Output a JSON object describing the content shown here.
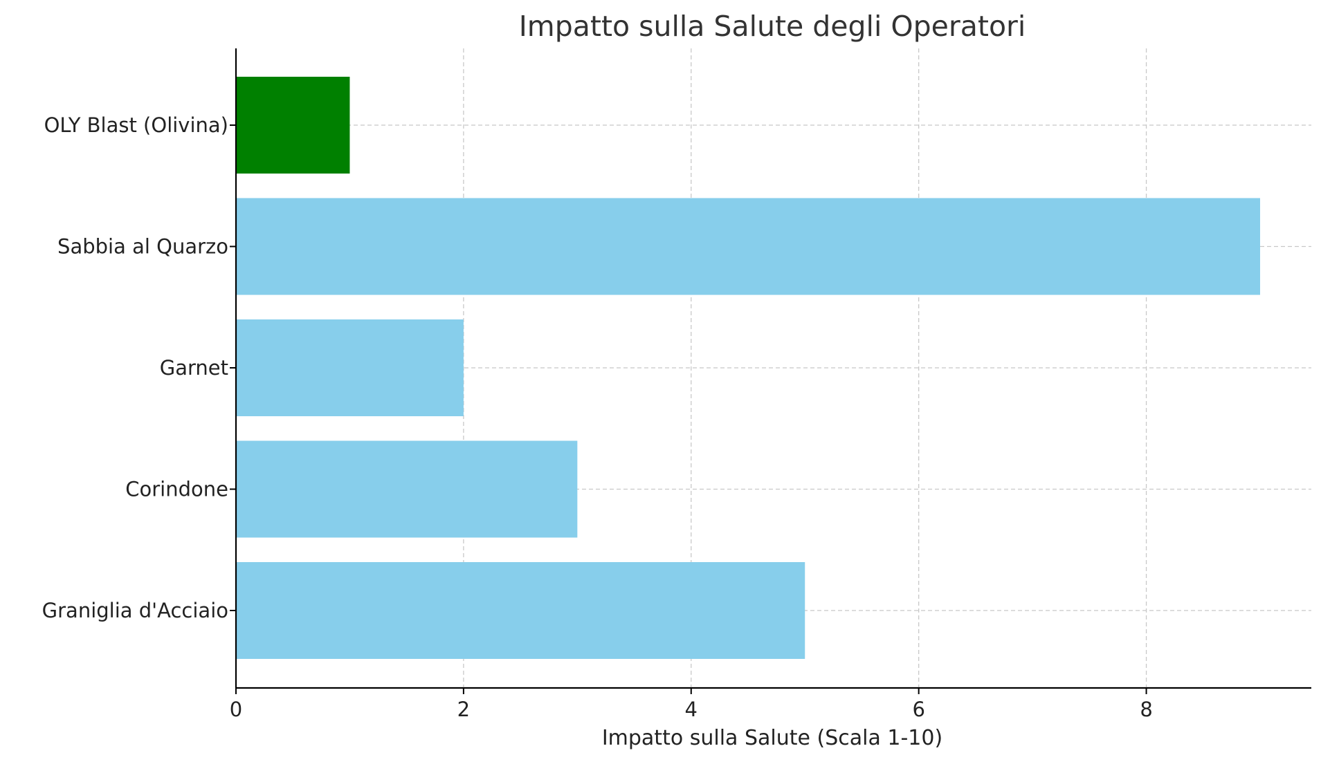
{
  "chart_data": {
    "type": "bar",
    "orientation": "horizontal",
    "title": "Impatto sulla Salute degli Operatori",
    "xlabel": "Impatto sulla Salute (Scala 1-10)",
    "ylabel": "",
    "categories": [
      "Graniglia d'Acciaio",
      "Corindone",
      "Garnet",
      "Sabbia al Quarzo",
      "OLY Blast (Olivina)"
    ],
    "values": [
      5,
      3,
      2,
      9,
      1
    ],
    "bar_colors": [
      "#87CEEB",
      "#87CEEB",
      "#87CEEB",
      "#87CEEB",
      "#008000"
    ],
    "xlim": [
      0,
      9.45
    ],
    "xticks": [
      0,
      2,
      4,
      6,
      8
    ],
    "xtick_labels": [
      "0",
      "2",
      "4",
      "6",
      "8"
    ],
    "grid": true,
    "legend": "none"
  }
}
